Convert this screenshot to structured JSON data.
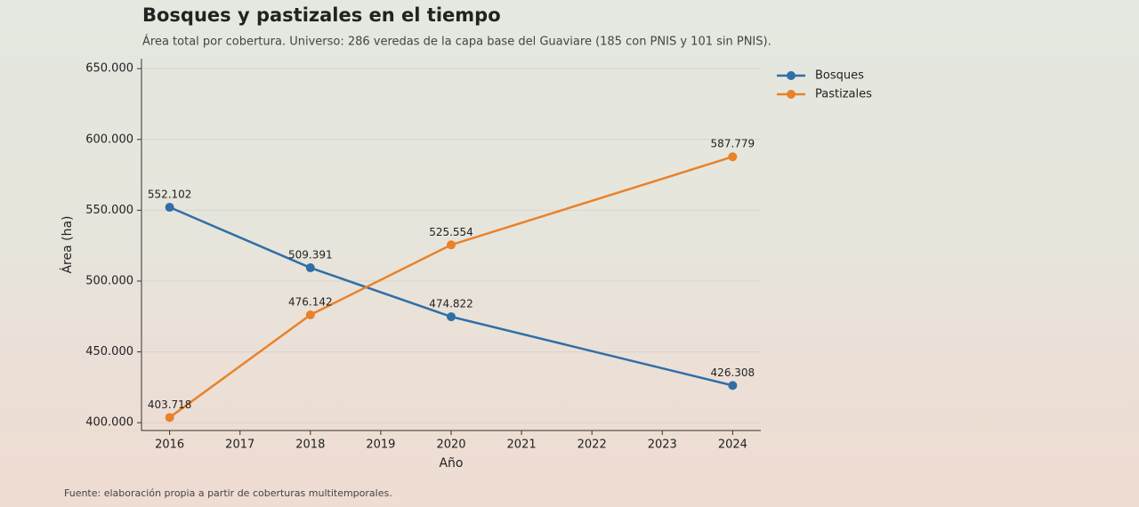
{
  "chart_data": {
    "type": "line",
    "title": "Bosques y pastizales en el tiempo",
    "subtitle": "Área total por cobertura. Universo: 286 veredas de la capa base del Guaviare (185 con PNIS y 101 sin PNIS).",
    "y_label": "Área (ha)",
    "x_label": "Año",
    "source": "Fuente: elaboración propia a partir de coberturas multitemporales.",
    "x": [
      2016,
      2018,
      2020,
      2024
    ],
    "series": [
      {
        "name": "Bosques",
        "color": "#2f6fa6",
        "values": [
          552102,
          509391,
          474822,
          426308
        ],
        "value_labels": [
          "552.102",
          "509.391",
          "474.822",
          "426.308"
        ]
      },
      {
        "name": "Pastizales",
        "color": "#e9822a",
        "values": [
          403718,
          476142,
          525554,
          587779
        ],
        "value_labels": [
          "403.718",
          "476.142",
          "525.554",
          "587.779"
        ]
      }
    ],
    "xlim": [
      2015.6,
      2024.4
    ],
    "xticks": [
      2016,
      2017,
      2018,
      2019,
      2020,
      2021,
      2022,
      2023,
      2024
    ],
    "ylim": [
      394500,
      657000
    ],
    "yticks": [
      {
        "value": 400000,
        "label": "400.000"
      },
      {
        "value": 450000,
        "label": "450.000"
      },
      {
        "value": 500000,
        "label": "500.000"
      },
      {
        "value": 550000,
        "label": "550.000"
      },
      {
        "value": 600000,
        "label": "600.000"
      },
      {
        "value": 650000,
        "label": "650.000"
      }
    ],
    "grid": true,
    "legend": "upper right outside"
  }
}
